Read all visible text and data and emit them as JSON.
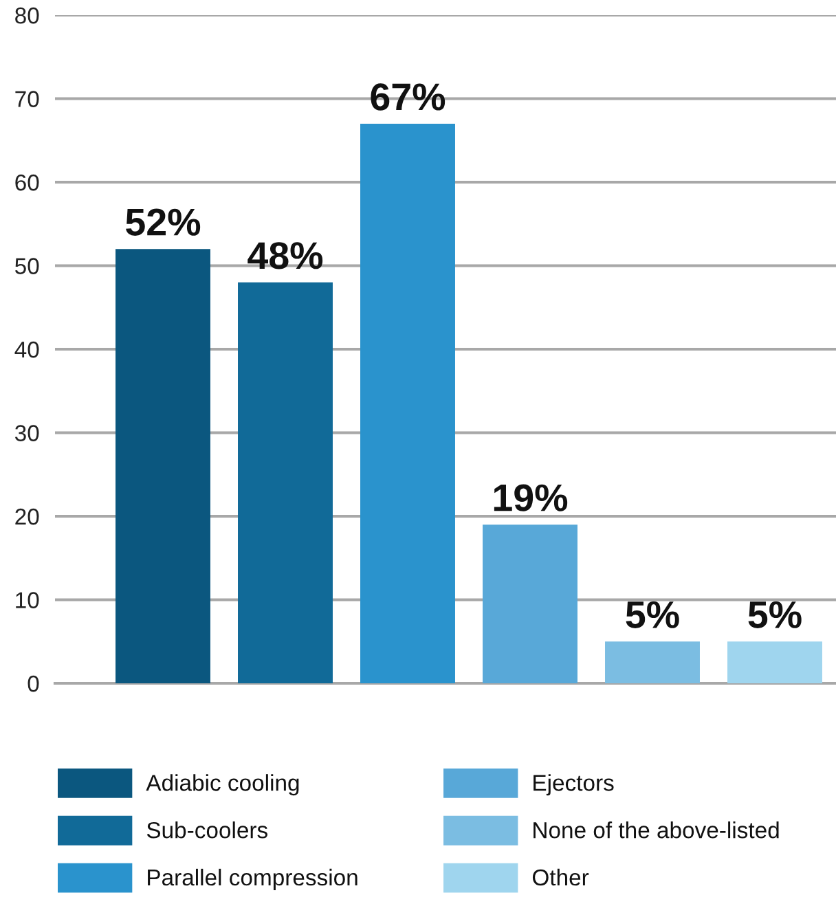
{
  "chart_data": {
    "type": "bar",
    "categories": [
      null,
      null,
      null,
      null,
      null,
      null
    ],
    "series": [
      {
        "name": "Adiabic cooling",
        "color": "#0b577f",
        "values": [
          52,
          null,
          null,
          null,
          null,
          null
        ],
        "value_labels": [
          "52%",
          null,
          null,
          null,
          null,
          null
        ]
      },
      {
        "name": "Sub-coolers",
        "color": "#116a98",
        "values": [
          null,
          48,
          null,
          null,
          null,
          null
        ],
        "value_labels": [
          null,
          "48%",
          null,
          null,
          null,
          null
        ]
      },
      {
        "name": "Parallel compression",
        "color": "#2a93cd",
        "values": [
          null,
          null,
          67,
          null,
          null,
          null
        ],
        "value_labels": [
          null,
          null,
          "67%",
          null,
          null,
          null
        ]
      },
      {
        "name": "Ejectors",
        "color": "#58a8d8",
        "values": [
          null,
          null,
          null,
          19,
          null,
          null
        ],
        "value_labels": [
          null,
          null,
          null,
          "19%",
          null,
          null
        ]
      },
      {
        "name": "None of the above-listed",
        "color": "#7bbde2",
        "values": [
          null,
          null,
          null,
          null,
          5,
          null
        ],
        "value_labels": [
          null,
          null,
          null,
          null,
          "5%",
          null
        ]
      },
      {
        "name": "Other",
        "color": "#9fd5ee",
        "values": [
          null,
          null,
          null,
          null,
          null,
          5
        ],
        "value_labels": [
          null,
          null,
          null,
          null,
          null,
          "5%"
        ]
      }
    ],
    "ylim": [
      0,
      80
    ],
    "yticks": [
      0,
      10,
      20,
      30,
      40,
      50,
      60,
      70,
      80
    ],
    "grid": "y",
    "legend": "bottom"
  }
}
